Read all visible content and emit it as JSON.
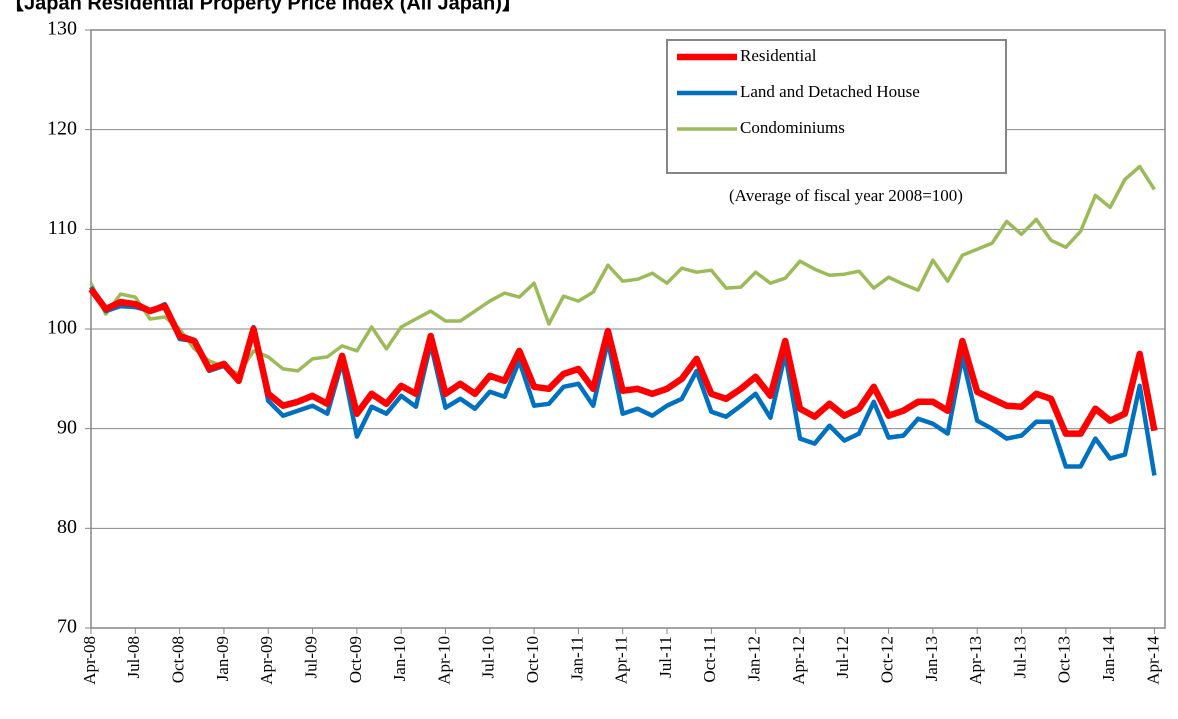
{
  "chart_data": {
    "type": "line",
    "title": "【Japan Residential Property Price Index (All Japan)】",
    "note": "(Average of fiscal year 2008=100)",
    "categories": [
      "Apr-08",
      null,
      null,
      "Jul-08",
      null,
      null,
      "Oct-08",
      null,
      null,
      "Jan-09",
      null,
      null,
      "Apr-09",
      null,
      null,
      "Jul-09",
      null,
      null,
      "Oct-09",
      null,
      null,
      "Jan-10",
      null,
      null,
      "Apr-10",
      null,
      null,
      "Jul-10",
      null,
      null,
      "Oct-10",
      null,
      null,
      "Jan-11",
      null,
      null,
      "Apr-11",
      null,
      null,
      "Jul-11",
      null,
      null,
      "Oct-11",
      null,
      null,
      "Jan-12",
      null,
      null,
      "Apr-12",
      null,
      null,
      "Jul-12",
      null,
      null,
      "Oct-12",
      null,
      null,
      "Jan-13",
      null,
      null,
      "Apr-13",
      null,
      null,
      "Jul-13",
      null,
      null,
      "Oct-13",
      null,
      null,
      "Jan-14",
      null,
      null,
      "Apr-14"
    ],
    "series": [
      {
        "name": "Residential",
        "color": "#ff0000",
        "values": [
          104,
          102,
          102.7,
          102.5,
          101.8,
          102.3,
          99.3,
          98.8,
          96,
          96.5,
          94.8,
          100,
          93.5,
          92.3,
          92.7,
          93.3,
          92.5,
          97.3,
          91.5,
          93.5,
          92.5,
          94.3,
          93.5,
          99.3,
          93.5,
          94.5,
          93.5,
          95.3,
          94.8,
          97.8,
          94.2,
          94,
          95.5,
          96,
          94,
          99.8,
          93.8,
          94,
          93.5,
          94,
          95,
          97,
          93.5,
          93,
          94,
          95.2,
          93.3,
          98.8,
          92,
          91.2,
          92.5,
          91.3,
          92,
          94.2,
          91.3,
          91.8,
          92.7,
          92.7,
          91.8,
          98.8,
          93.7,
          93,
          92.3,
          92.2,
          93.5,
          93,
          89.5,
          89.5,
          92,
          90.8,
          91.5,
          97.5,
          89.8
        ]
      },
      {
        "name": "Land and Detached House",
        "color": "#0070c0",
        "values": [
          104.2,
          101.8,
          102.3,
          102.2,
          101.8,
          102.5,
          99,
          98.8,
          95.8,
          96.3,
          94.7,
          100.2,
          92.8,
          91.3,
          91.8,
          92.3,
          91.5,
          96.7,
          89.2,
          92.2,
          91.5,
          93.3,
          92.2,
          98.5,
          92.1,
          93,
          92,
          93.7,
          93.2,
          96.8,
          92.3,
          92.5,
          94.2,
          94.5,
          92.3,
          98.8,
          91.5,
          92,
          91.3,
          92.3,
          93,
          95.8,
          91.7,
          91.2,
          92.3,
          93.5,
          91.1,
          97.5,
          89,
          88.5,
          90.3,
          88.8,
          89.5,
          92.7,
          89.1,
          89.3,
          91,
          90.5,
          89.5,
          97.2,
          90.8,
          90,
          89,
          89.3,
          90.7,
          90.7,
          86.2,
          86.2,
          89,
          87,
          87.4,
          94.3,
          85.3
        ]
      },
      {
        "name": "Condominiums",
        "color": "#9bbb59",
        "values": [
          104.6,
          101.5,
          103.5,
          103.2,
          101,
          101.2,
          100,
          98,
          96.8,
          96.2,
          95.5,
          97.8,
          97.2,
          96,
          95.8,
          97,
          97.2,
          98.3,
          97.8,
          100.2,
          98,
          100.2,
          101,
          101.8,
          100.8,
          100.8,
          101.8,
          102.8,
          103.6,
          103.2,
          104.6,
          100.5,
          103.3,
          102.8,
          103.7,
          106.4,
          104.8,
          105,
          105.6,
          104.6,
          106.1,
          105.7,
          105.9,
          104.1,
          104.2,
          105.7,
          104.6,
          105.1,
          106.8,
          106,
          105.4,
          105.5,
          105.8,
          104.1,
          105.2,
          104.5,
          103.9,
          106.9,
          104.8,
          107.4,
          108,
          108.6,
          110.8,
          109.5,
          111,
          108.9,
          108.2,
          109.8,
          113.4,
          112.2,
          115,
          116.3,
          114
        ]
      }
    ],
    "ylim": [
      70,
      130
    ],
    "yticks": [
      70,
      80,
      90,
      100,
      110,
      120,
      130
    ],
    "grid": true,
    "legend": "top-right"
  }
}
